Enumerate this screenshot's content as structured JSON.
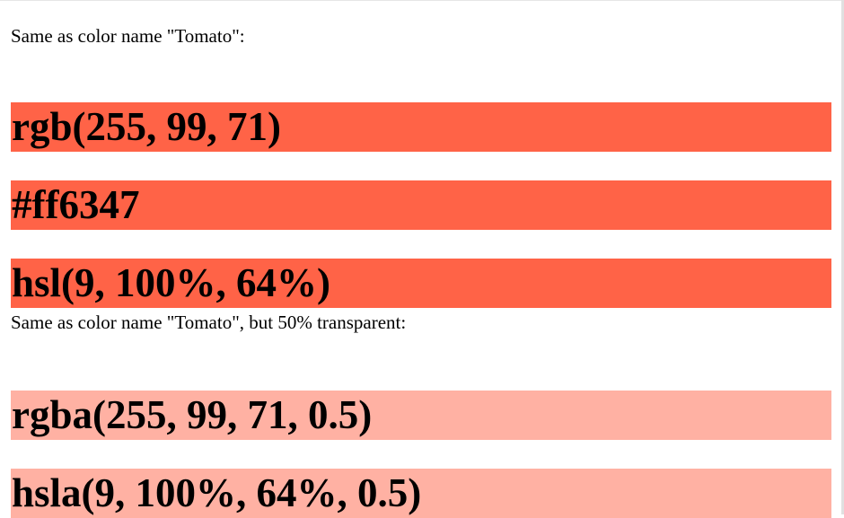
{
  "paragraphs": {
    "opaque_intro": "Same as color name \"Tomato\":",
    "transparent_intro": "Same as color name \"Tomato\", but 50% transparent:"
  },
  "swatches": [
    {
      "label": "rgb(255, 99, 71)",
      "color": "#ff6347"
    },
    {
      "label": "#ff6347",
      "color": "#ff6347"
    },
    {
      "label": "hsl(9, 100%, 64%)",
      "color": "#ff6347"
    },
    {
      "label": "rgba(255, 99, 71, 0.5)",
      "color": "rgba(255, 99, 71, 0.5)"
    },
    {
      "label": "hsla(9, 100%, 64%, 0.5)",
      "color": "rgba(255, 99, 71, 0.5)"
    }
  ]
}
